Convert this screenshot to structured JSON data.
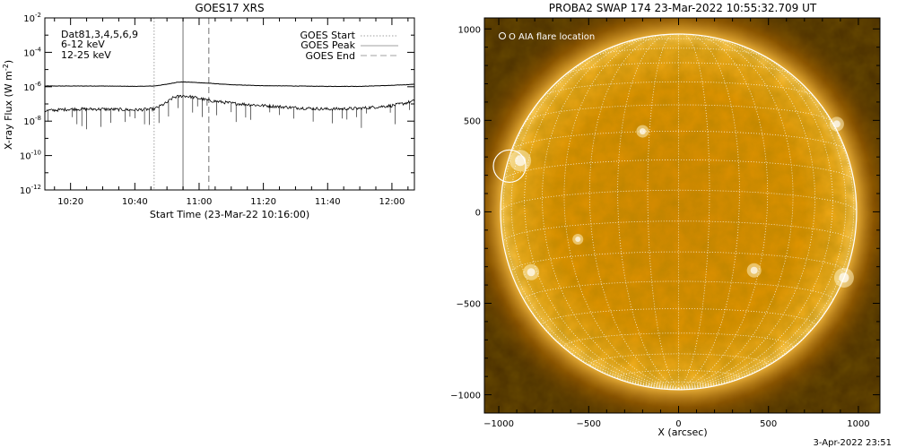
{
  "colors": {
    "background": "#ffffff",
    "axes": "#000000",
    "goes_start": "#a0a0a0",
    "goes_peak": "#a0a0a0",
    "goes_end": "#a0a0a0",
    "label_dq": "#000000",
    "label_low": "#d000d0",
    "label_high": "#00cc00",
    "sun_disk": "#f0a000",
    "sun_dark": "#4a2f00",
    "grid": "#ffffff",
    "flare_marker": "#ffffff"
  },
  "chart_data": [
    {
      "type": "line",
      "title": "GOES17 XRS",
      "xlabel": "Start Time (23-Mar-22 10:16:00)",
      "ylabel": "X-ray Flux (W m",
      "ylabel_superscript": "-2",
      "ylabel_close": ")",
      "y_scale": "log",
      "ylim": [
        1e-12,
        0.01
      ],
      "xlim": [
        "10:12",
        "12:07"
      ],
      "x_tick_labels": [
        "10:20",
        "10:40",
        "11:00",
        "11:20",
        "11:40",
        "12:00"
      ],
      "x_ticks": [
        "10:20",
        "10:40",
        "11:00",
        "11:20",
        "11:40",
        "12:00"
      ],
      "y_tick_base": "10",
      "y_tick_exponents": [
        "-12",
        "-10",
        "-8",
        "-6",
        "-4",
        "-2"
      ],
      "y_ticks": [
        -12,
        -10,
        -8,
        -6,
        -4,
        -2
      ],
      "labels": {
        "dq": "Dat81,3,4,5,6,9",
        "low": "6-12 keV",
        "high": "12-25 keV"
      },
      "legend": {
        "placement": "top-right",
        "entries": [
          "GOES Start",
          "GOES Peak",
          "GOES End"
        ]
      },
      "events": {
        "start": "10:46",
        "peak": "10:55",
        "end": "11:03"
      },
      "series": [
        {
          "x": [
            "10:12",
            "10:20",
            "10:30",
            "10:40",
            "10:46",
            "10:50",
            "10:53",
            "10:55",
            "10:58",
            "11:03",
            "11:10",
            "11:20",
            "11:30",
            "11:40",
            "11:50",
            "12:00",
            "12:04",
            "12:07"
          ],
          "values": [
            1.1e-06,
            1.1e-06,
            1.1e-06,
            1.05e-06,
            1.1e-06,
            1.4e-06,
            1.8e-06,
            1.9e-06,
            1.8e-06,
            1.6e-06,
            1.3e-06,
            1.15e-06,
            1.1e-06,
            1.05e-06,
            1.05e-06,
            1.2e-06,
            1.3e-06,
            1.4e-06
          ]
        },
        {
          "x": [
            "10:12",
            "10:20",
            "10:30",
            "10:40",
            "10:46",
            "10:50",
            "10:52",
            "10:55",
            "10:58",
            "11:03",
            "11:10",
            "11:20",
            "11:30",
            "11:40",
            "11:50",
            "12:00",
            "12:04",
            "12:07"
          ],
          "values": [
            4e-08,
            5e-08,
            5e-08,
            4.5e-08,
            5e-08,
            1.2e-07,
            2.4e-07,
            3e-07,
            2.5e-07,
            1.6e-07,
            1.1e-07,
            8e-08,
            6e-08,
            5e-08,
            5.5e-08,
            8e-08,
            1.1e-07,
            1.5e-07
          ]
        }
      ]
    },
    {
      "type": "image",
      "title": "PROBA2 SWAP 174 23-Mar-2022 10:55:32.709 UT",
      "xlabel": "X (arcsec)",
      "xlim": [
        -1080,
        1120
      ],
      "ylim": [
        -1100,
        1060
      ],
      "x_ticks": [
        -1000,
        -500,
        0,
        500,
        1000
      ],
      "x_tick_labels": [
        "−1000",
        "−500",
        "0",
        "500",
        "1000"
      ],
      "y_ticks": [
        -1000,
        -500,
        0,
        500,
        1000
      ],
      "y_tick_labels": [
        "−1000",
        "−500",
        "0",
        "500",
        "1000"
      ],
      "solar_radius_arcsec": 990,
      "legend": "O AIA flare location",
      "flare_location": {
        "x": -940,
        "y": 250,
        "radius": 90
      },
      "timestamp": "3-Apr-2022 23:51"
    }
  ]
}
